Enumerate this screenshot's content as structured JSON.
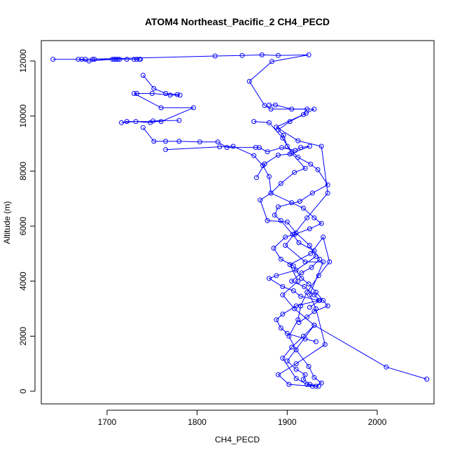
{
  "chart_data": {
    "type": "scatter",
    "title": "ATOM4 Northeast_Pacific_2 CH4_PECD",
    "xlabel": "CH4_PECD",
    "ylabel": "Altitude (m)",
    "xlim": [
      1627,
      2063
    ],
    "ylim": [
      -460,
      12740
    ],
    "xticks": [
      1700,
      1800,
      1900,
      2000
    ],
    "yticks": [
      0,
      2000,
      4000,
      6000,
      8000,
      10000,
      12000
    ],
    "grid": false,
    "legend": "none",
    "color": "#0000ff",
    "series": [
      {
        "mode": "lines+markers",
        "x": [
          1640,
          1672,
          1686,
          1708,
          1712,
          1722,
          1737,
          1733,
          1710,
          1668,
          1680,
          1706,
          1714,
          1736,
          1730,
          1684,
          1676,
          1820,
          1850,
          1872,
          1890,
          1924,
          1883,
          1858,
          1875,
          1882,
          1930,
          1921,
          1888,
          1912,
          1938,
          1945,
          1922,
          1898,
          1920,
          1940,
          1925,
          1932,
          1942,
          1910,
          1890,
          1902,
          1928,
          1935,
          1922,
          1910,
          1895,
          1905,
          1918,
          1930,
          1908,
          1895,
          1912,
          1903,
          1926,
          1940,
          1947,
          1935,
          1922,
          1915,
          1912,
          1902,
          1910,
          1924,
          1930,
          1938,
          1932,
          1925,
          1918,
          1920,
          1910,
          1900,
          1930,
          2010,
          2055
        ],
        "y": [
          12060,
          12060,
          12060,
          12060,
          12060,
          12060,
          12060,
          12060,
          12060,
          12060,
          12000,
          12060,
          12060,
          12060,
          12060,
          12060,
          12060,
          12180,
          12200,
          12220,
          12200,
          12220,
          11980,
          11260,
          10380,
          10250,
          10250,
          10100,
          9600,
          9100,
          8900,
          7200,
          6300,
          5300,
          4700,
          4700,
          3500,
          3000,
          1700,
          1000,
          600,
          250,
          180,
          180,
          250,
          460,
          1200,
          1600,
          2000,
          2400,
          3000,
          3500,
          4000,
          4600,
          5000,
          5600,
          4700,
          4200,
          3600,
          3100,
          2600,
          2000,
          1500,
          900,
          500,
          300,
          180,
          250,
          430,
          600,
          800,
          1100,
          2400,
          880,
          440
        ]
      },
      {
        "mode": "lines+markers",
        "x": [
          1740,
          1752,
          1765,
          1778,
          1781,
          1770,
          1750,
          1733,
          1730,
          1760,
          1796,
          1760,
          1722,
          1716,
          1732,
          1748,
          1751,
          1780
        ],
        "y": [
          11480,
          11000,
          10820,
          10780,
          10760,
          10760,
          10820,
          10820,
          10820,
          10300,
          10300,
          9800,
          9800,
          9760,
          9800,
          9760,
          9820,
          9840
        ]
      },
      {
        "mode": "lines+markers",
        "x": [
          1740,
          1752,
          1765,
          1780,
          1803,
          1823,
          1833,
          1865,
          1869,
          1878,
          1894,
          1909,
          1915,
          1925,
          1903,
          1890,
          1875,
          1866
        ],
        "y": [
          9580,
          9080,
          9080,
          9080,
          9060,
          9060,
          8860,
          8860,
          8850,
          8700,
          8850,
          8750,
          8860,
          8900,
          8620,
          8580,
          8260,
          7760
        ]
      },
      {
        "mode": "lines+markers",
        "x": [
          1765,
          1825,
          1840,
          1863,
          1873,
          1880,
          1882,
          1905,
          1918,
          1930,
          1938,
          1925,
          1908,
          1898,
          1885,
          1893,
          1907,
          1916,
          1924,
          1932,
          1940,
          1945,
          1930,
          1922,
          1913
        ],
        "y": [
          8780,
          8880,
          8900,
          8560,
          8200,
          7800,
          7200,
          6850,
          6650,
          6300,
          6100,
          5900,
          5700,
          5600,
          5200,
          4800,
          4550,
          4100,
          3900,
          3600,
          3300,
          3100,
          2900,
          2700,
          2500
        ]
      },
      {
        "mode": "lines+markers",
        "x": [
          1863,
          1880,
          1895,
          1905,
          1920,
          1908,
          1893,
          1882,
          1870,
          1878,
          1900,
          1910,
          1925,
          1932,
          1910,
          1888,
          1880,
          1895,
          1907,
          1915,
          1935,
          1910,
          1895,
          1888,
          1893,
          1900,
          1920,
          1932
        ],
        "y": [
          9800,
          9760,
          9200,
          8650,
          8100,
          7950,
          7550,
          7200,
          6950,
          6200,
          6150,
          5750,
          5300,
          4900,
          4400,
          4200,
          4100,
          3800,
          3650,
          3450,
          3300,
          3100,
          2800,
          2600,
          2300,
          2100,
          1900,
          1800
        ]
      },
      {
        "mode": "lines+markers",
        "x": [
          1880,
          1887,
          1905,
          1922,
          1918,
          1903,
          1890,
          1896,
          1900,
          1912,
          1926,
          1934,
          1945,
          1928,
          1914,
          1890,
          1886,
          1893,
          1906,
          1913,
          1930,
          1936,
          1927,
          1916,
          1905,
          1919,
          1930,
          1936,
          1925
        ],
        "y": [
          10400,
          10400,
          10250,
          10250,
          10050,
          9800,
          9500,
          9300,
          8900,
          8500,
          8250,
          8050,
          7500,
          7200,
          6900,
          6700,
          6400,
          6200,
          5700,
          5400,
          5100,
          4800,
          4500,
          4300,
          4000,
          3800,
          3500,
          3300,
          3050
        ]
      }
    ]
  }
}
